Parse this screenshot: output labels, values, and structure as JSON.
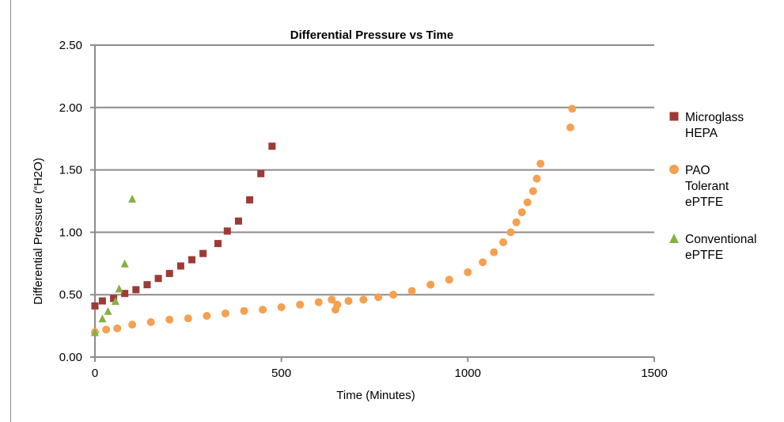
{
  "chart_data": {
    "type": "scatter",
    "title": "Differential Pressure vs Time",
    "xlabel": "Time (Minutes)",
    "ylabel": "Differential Pressure (“H2O)",
    "xlim": [
      0,
      1500
    ],
    "ylim": [
      0,
      2.5
    ],
    "x_ticks": [
      0,
      500,
      1000,
      1500
    ],
    "x_tick_labels": [
      "0",
      "500",
      "1000",
      "1500"
    ],
    "y_ticks": [
      0,
      0.5,
      1.0,
      1.5,
      2.0,
      2.5
    ],
    "y_tick_labels": [
      "0.00",
      "0.50",
      "1.00",
      "1.50",
      "2.00",
      "2.50"
    ],
    "grid": "horizontal",
    "legend_position": "right",
    "series": [
      {
        "name": "Microglass HEPA",
        "legend_lines": [
          "Microglass",
          "HEPA"
        ],
        "marker": "square",
        "color": "#9e3a35",
        "x": [
          0,
          20,
          50,
          80,
          110,
          140,
          170,
          200,
          230,
          260,
          290,
          330,
          355,
          385,
          415,
          445,
          475
        ],
        "y": [
          0.41,
          0.45,
          0.47,
          0.51,
          0.54,
          0.58,
          0.63,
          0.67,
          0.73,
          0.78,
          0.83,
          0.91,
          1.01,
          1.09,
          1.26,
          1.47,
          1.69
        ]
      },
      {
        "name": "PAO Tolerant ePTFE",
        "legend_lines": [
          "PAO",
          "Tolerant",
          "ePTFE"
        ],
        "marker": "circle",
        "color": "#f5a050",
        "x": [
          0,
          30,
          60,
          100,
          150,
          200,
          250,
          300,
          350,
          400,
          450,
          500,
          550,
          600,
          635,
          645,
          650,
          680,
          720,
          760,
          800,
          850,
          900,
          950,
          1000,
          1040,
          1070,
          1095,
          1115,
          1130,
          1145,
          1160,
          1175,
          1185,
          1195,
          1275,
          1280
        ],
        "y": [
          0.2,
          0.22,
          0.23,
          0.26,
          0.28,
          0.3,
          0.31,
          0.33,
          0.35,
          0.37,
          0.38,
          0.4,
          0.42,
          0.44,
          0.46,
          0.38,
          0.42,
          0.45,
          0.46,
          0.48,
          0.5,
          0.53,
          0.58,
          0.62,
          0.68,
          0.76,
          0.84,
          0.92,
          1.0,
          1.08,
          1.16,
          1.24,
          1.33,
          1.43,
          1.55,
          1.84,
          1.99
        ]
      },
      {
        "name": "Conventional ePTFE",
        "legend_lines": [
          "Conventional",
          "ePTFE"
        ],
        "marker": "triangle",
        "color": "#86b043",
        "x": [
          0,
          20,
          35,
          55,
          65,
          80,
          100
        ],
        "y": [
          0.2,
          0.31,
          0.37,
          0.45,
          0.55,
          0.75,
          1.27
        ]
      }
    ]
  }
}
